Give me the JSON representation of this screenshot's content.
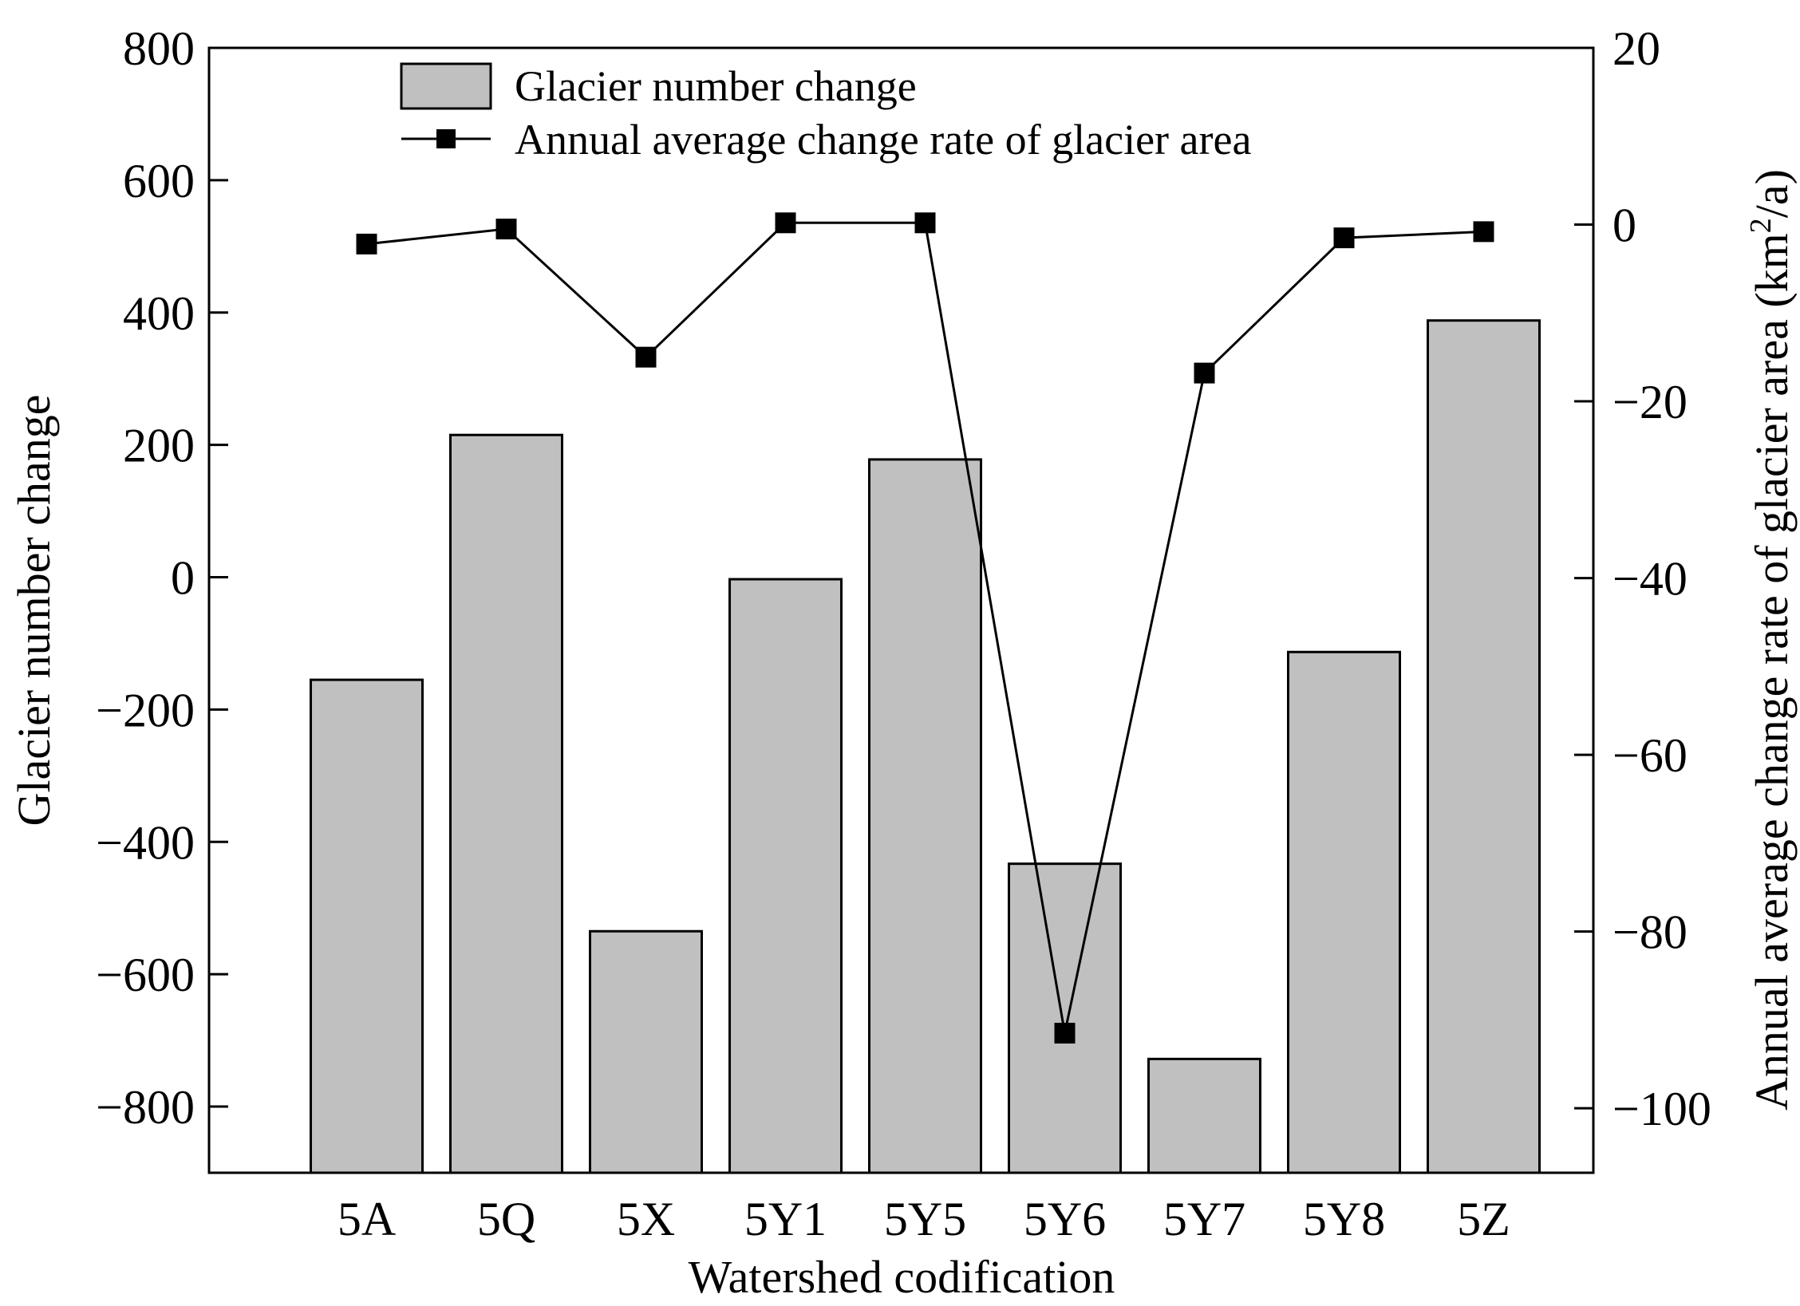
{
  "chart_data": {
    "type": "bar",
    "categories": [
      "5A",
      "5Q",
      "5X",
      "5Y1",
      "5Y5",
      "5Y6",
      "5Y7",
      "5Y8",
      "5Z"
    ],
    "series": [
      {
        "name": "Glacier number change",
        "type": "bar",
        "axis": "left",
        "values": [
          -155,
          215,
          -535,
          -3,
          178,
          -433,
          -728,
          -113,
          388
        ]
      },
      {
        "name": "Annual average change rate of glacier area",
        "type": "line",
        "axis": "right",
        "marker": "square",
        "values": [
          -2.2,
          -0.5,
          -15,
          0.2,
          0.2,
          -91.5,
          -16.8,
          -1.5,
          -0.8
        ]
      }
    ],
    "xlabel": "Watershed codification",
    "ylabel": "Glacier number change",
    "y2label_main": "Annual average change rate of glacier area (km",
    "y2label_sup": "2",
    "y2label_end": "/a)",
    "ylim": [
      -900,
      800
    ],
    "y2lim": [
      -107.3,
      20
    ],
    "yticks": [
      800,
      600,
      400,
      200,
      0,
      -200,
      -400,
      -600,
      -800
    ],
    "ytick_labels": [
      "800",
      "600",
      "400",
      "200",
      "0",
      "−200",
      "−400",
      "−600",
      "−800"
    ],
    "y2ticks": [
      20,
      0,
      -20,
      -40,
      -60,
      -80,
      -100
    ],
    "y2tick_labels": [
      "20",
      "0",
      "−20",
      "−40",
      "−60",
      "−80",
      "−100"
    ],
    "grid": false,
    "legend_position": "top-center",
    "colors": {
      "bar_fill": "#c0c0c0",
      "line": "#000000"
    }
  }
}
